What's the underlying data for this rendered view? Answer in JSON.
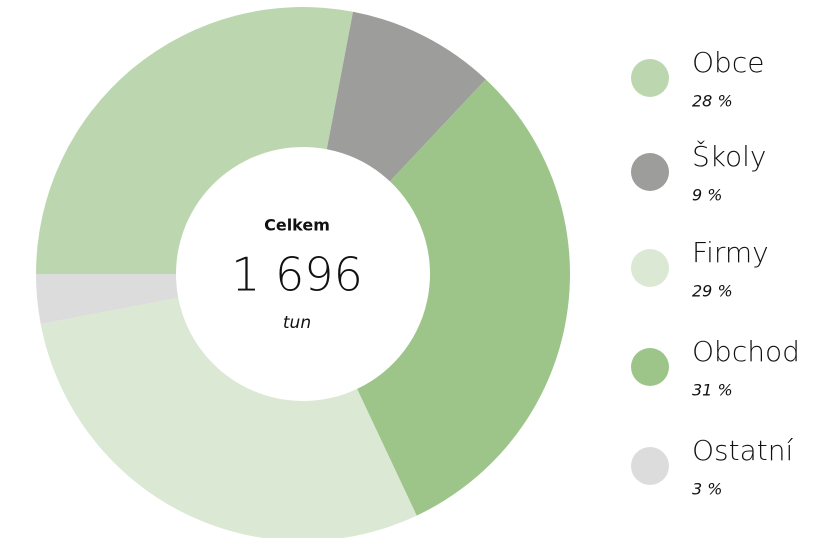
{
  "chart_data": {
    "type": "donut",
    "categories": [
      "Obce",
      "Školy",
      "Firmy",
      "Obchod",
      "Ostatní"
    ],
    "values": [
      28,
      9,
      29,
      31,
      3
    ],
    "value_labels": [
      "28 %",
      "9 %",
      "29 %",
      "31 %",
      "3 %"
    ],
    "colors": [
      "#bcd7b0",
      "#9d9d9b",
      "#dae8d4",
      "#9dc589",
      "#dcdcdc"
    ],
    "center": {
      "title": "Celkem",
      "total": {
        "value": 1696,
        "label": "1 696"
      },
      "unit": "tun"
    },
    "legend": "right"
  }
}
